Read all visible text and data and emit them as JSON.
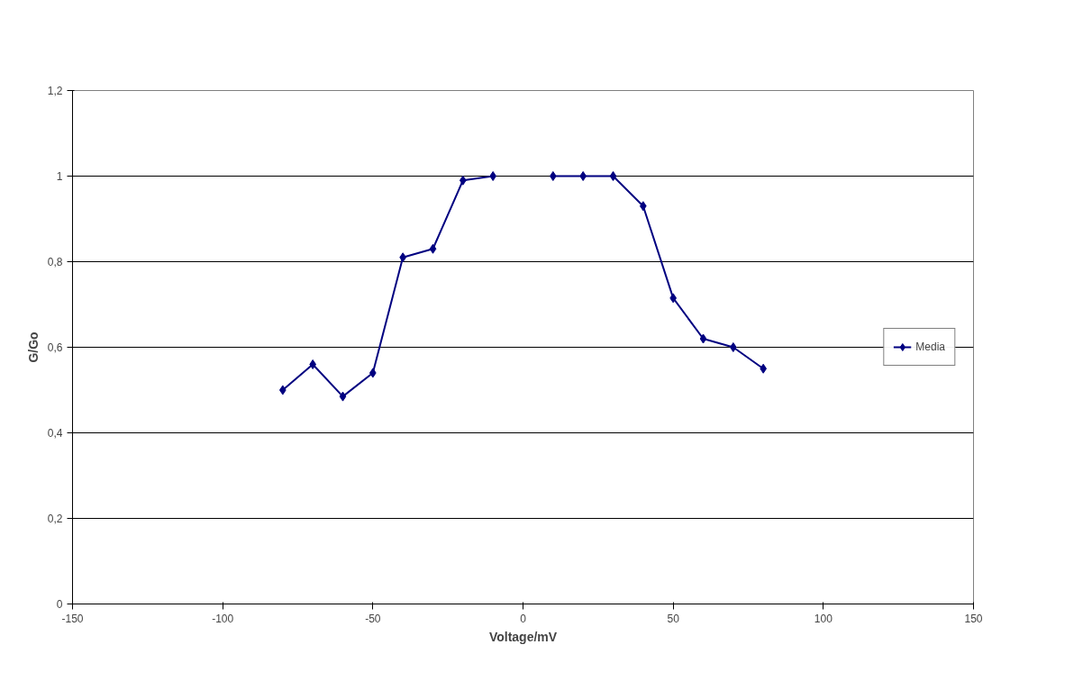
{
  "chart_data": {
    "type": "line",
    "xlabel": "Voltage/mV",
    "ylabel": "G/Go",
    "x": [
      -80,
      -70,
      -60,
      -50,
      -40,
      -30,
      -20,
      -10,
      0,
      10,
      20,
      30,
      40,
      50,
      60,
      70,
      80
    ],
    "series": [
      {
        "name": "Media",
        "color": "#000080",
        "values": [
          0.5,
          0.56,
          0.485,
          0.54,
          0.81,
          0.83,
          0.99,
          1.0,
          null,
          1.0,
          1.0,
          1.0,
          0.93,
          0.715,
          0.62,
          0.6,
          0.55
        ]
      }
    ],
    "xlim": [
      -150,
      150
    ],
    "xticks": [
      -150,
      -100,
      -50,
      0,
      50,
      100,
      150
    ],
    "ylim": [
      0,
      1.2
    ],
    "yticks": [
      0,
      {
        "value": 0.2,
        "label": "0,2"
      },
      {
        "value": 0.4,
        "label": "0,4"
      },
      {
        "value": 0.6,
        "label": "0,6"
      },
      {
        "value": 0.8,
        "label": "0,8"
      },
      1,
      {
        "value": 1.2,
        "label": "1,2"
      }
    ],
    "grid": "y",
    "legend": "right",
    "marker": "diamond",
    "line_style": "solid"
  }
}
